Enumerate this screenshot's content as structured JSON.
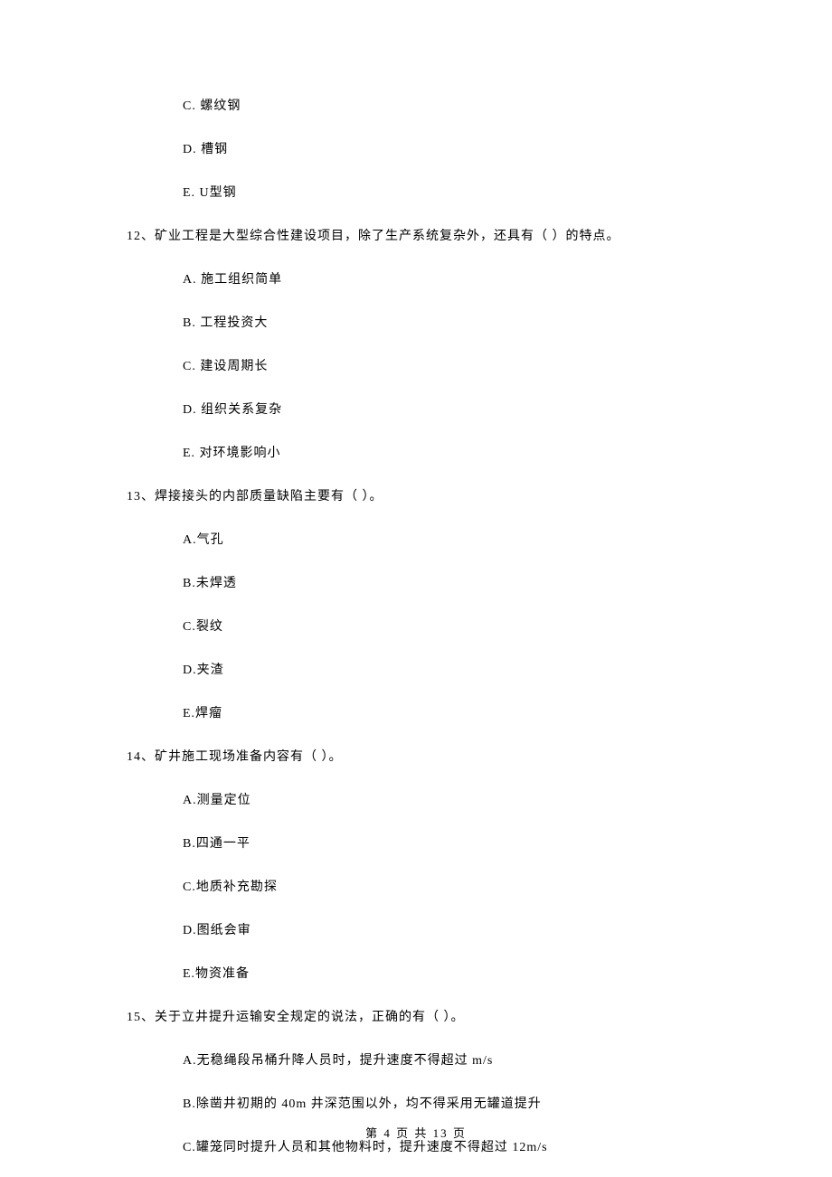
{
  "orphan_options": [
    "C.  螺纹钢",
    "D.  槽钢",
    "E.  U型钢"
  ],
  "questions": [
    {
      "number": "12、",
      "text": "矿业工程是大型综合性建设项目，除了生产系统复杂外，还具有（    ）的特点。",
      "options": [
        "A.  施工组织简单",
        "B.  工程投资大",
        "C.  建设周期长",
        "D.  组织关系复杂",
        "E.  对环境影响小"
      ]
    },
    {
      "number": "13、",
      "text": "焊接接头的内部质量缺陷主要有（    ）。",
      "options": [
        "A.气孔",
        "B.未焊透",
        "C.裂纹",
        "D.夹渣",
        "E.焊瘤"
      ]
    },
    {
      "number": "14、",
      "text": "矿井施工现场准备内容有（     ）。",
      "options": [
        "A.测量定位",
        "B.四通一平",
        "C.地质补充勘探",
        "D.图纸会审",
        "E.物资准备"
      ]
    },
    {
      "number": "15、",
      "text": "关于立井提升运输安全规定的说法，正确的有（    ）。",
      "options": [
        "A.无稳绳段吊桶升降人员时，提升速度不得超过 m/s",
        "B.除凿井初期的 40m 井深范围以外，均不得采用无罐道提升",
        "C.罐笼同时提升人员和其他物料时，提升速度不得超过 12m/s"
      ]
    }
  ],
  "footer": {
    "text": "第 4 页 共 13 页"
  }
}
